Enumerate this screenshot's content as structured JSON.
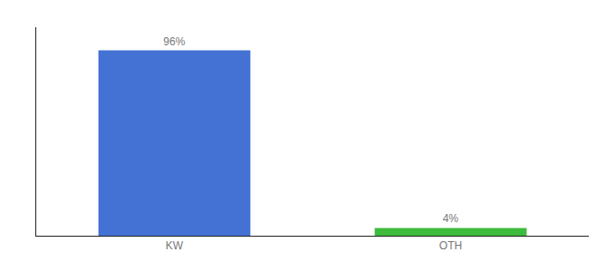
{
  "chart_data": {
    "type": "bar",
    "categories": [
      "KW",
      "OTH"
    ],
    "values": [
      96,
      4
    ],
    "value_labels": [
      "96%",
      "4%"
    ],
    "colors": [
      "#4472d4",
      "#3dbb3d"
    ],
    "ylim": [
      0,
      108
    ],
    "yticks": [],
    "grid": false,
    "data_labels": true,
    "tick_labels": "x"
  }
}
